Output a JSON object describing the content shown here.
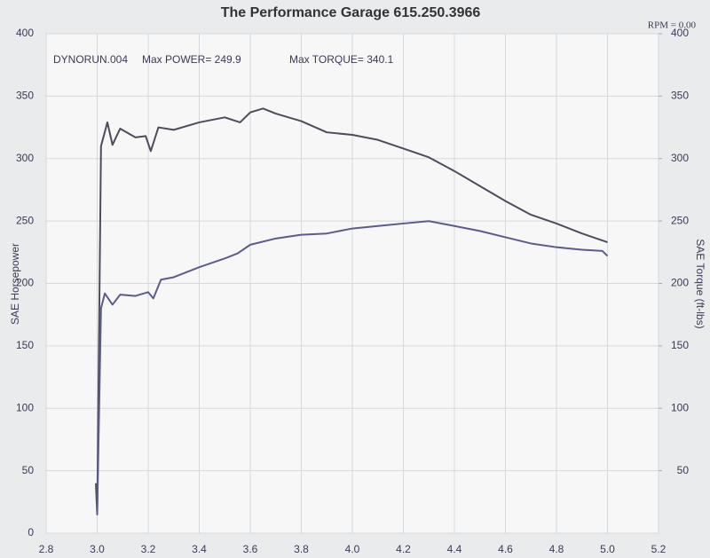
{
  "chart_data": {
    "type": "line",
    "title": "The Performance Garage 615.250.3966",
    "annotations": [
      "RPM = 0.00",
      "DYNORUN.004",
      "Max POWER= 249.9",
      "Max TORQUE= 340.1"
    ],
    "y_label": "SAE Horsepower",
    "y2_label": "SAE Torque (ft-lbs)",
    "xlim": [
      2.8,
      5.2
    ],
    "xticks": [
      2.8,
      {
        "value": 3,
        "label": "3.0"
      },
      3.2,
      3.4,
      3.6,
      3.8,
      {
        "value": 4,
        "label": "4.0"
      },
      4.2,
      4.4,
      4.6,
      4.8,
      {
        "value": 5,
        "label": "5.0"
      },
      5.2
    ],
    "ylim": [
      0,
      400
    ],
    "yticks": [
      0,
      50,
      100,
      150,
      200,
      250,
      300,
      350,
      400
    ],
    "y2lim": [
      0,
      400
    ],
    "y2ticks": [
      50,
      100,
      150,
      200,
      250,
      300,
      350,
      400
    ],
    "grid": true,
    "series": [
      {
        "color": "#4d4d5c",
        "axis": "y2",
        "x": [
          2.995,
          3.0,
          3.015,
          3.04,
          3.06,
          3.09,
          3.15,
          3.19,
          3.21,
          3.24,
          3.3,
          3.4,
          3.5,
          3.56,
          3.6,
          3.65,
          3.7,
          3.8,
          3.9,
          4.0,
          4.1,
          4.2,
          4.3,
          4.4,
          4.5,
          4.6,
          4.7,
          4.8,
          4.9,
          5.0
        ],
        "values": [
          40,
          15,
          310,
          329,
          311,
          324,
          317,
          318,
          306,
          325,
          323,
          329,
          333,
          329,
          337,
          340.1,
          336,
          330,
          321,
          319,
          315,
          308,
          301,
          290,
          278,
          266,
          255,
          248,
          240,
          233
        ]
      },
      {
        "color": "#5c5c8c",
        "x": [
          3.0,
          3.015,
          3.03,
          3.06,
          3.09,
          3.15,
          3.2,
          3.22,
          3.25,
          3.3,
          3.4,
          3.5,
          3.55,
          3.6,
          3.7,
          3.8,
          3.9,
          4.0,
          4.1,
          4.2,
          4.3,
          4.4,
          4.5,
          4.6,
          4.7,
          4.8,
          4.9,
          4.98,
          5.0
        ],
        "values": [
          15,
          180,
          192,
          183,
          191,
          190,
          193,
          188,
          203,
          205,
          213,
          220,
          224,
          231,
          236,
          239,
          240,
          244,
          246,
          248,
          249.9,
          246,
          242,
          237,
          232,
          229,
          227,
          226,
          222
        ]
      }
    ]
  }
}
